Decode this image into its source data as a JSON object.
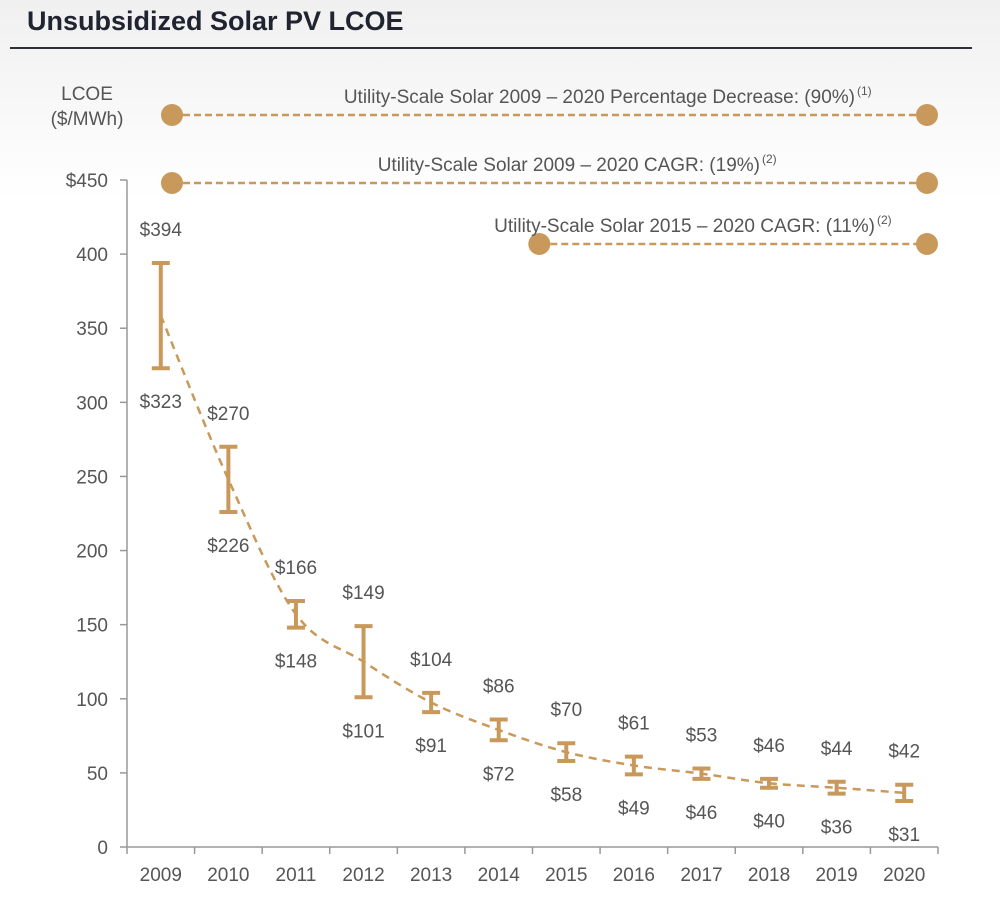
{
  "header": {
    "title": "Unsubsidized Solar PV LCOE"
  },
  "chart_data": {
    "type": "range-bar",
    "ylabel_line1": "LCOE",
    "ylabel_line2": "($/MWh)",
    "ylim": [
      0,
      450
    ],
    "yticks": [
      "0",
      "50",
      "100",
      "150",
      "200",
      "250",
      "300",
      "350",
      "400",
      "$450"
    ],
    "categories": [
      "2009",
      "2010",
      "2011",
      "2012",
      "2013",
      "2014",
      "2015",
      "2016",
      "2017",
      "2018",
      "2019",
      "2020"
    ],
    "high": [
      394,
      270,
      166,
      149,
      104,
      86,
      70,
      61,
      53,
      46,
      44,
      42
    ],
    "low": [
      323,
      226,
      148,
      101,
      91,
      72,
      58,
      49,
      46,
      40,
      36,
      31
    ],
    "high_labels": [
      "$394",
      "$270",
      "$166",
      "$149",
      "$104",
      "$86",
      "$70",
      "$61",
      "$53",
      "$46",
      "$44",
      "$42"
    ],
    "low_labels": [
      "$323",
      "$226",
      "$148",
      "$101",
      "$91",
      "$72",
      "$58",
      "$49",
      "$46",
      "$40",
      "$36",
      "$31"
    ],
    "trendline": "dashed",
    "color": "#C8995A",
    "annotations": [
      {
        "text": "Utility-Scale Solar 2009 – 2020 Percentage Decrease: (90%)",
        "sup": "(1)",
        "from": "2009",
        "to": "2020"
      },
      {
        "text": "Utility-Scale Solar 2009 – 2020 CAGR: (19%)",
        "sup": "(2)",
        "from": "2009",
        "to": "2020"
      },
      {
        "text": "Utility-Scale Solar 2015 – 2020 CAGR: (11%)",
        "sup": "(2)",
        "from": "2015",
        "to": "2020"
      }
    ]
  }
}
